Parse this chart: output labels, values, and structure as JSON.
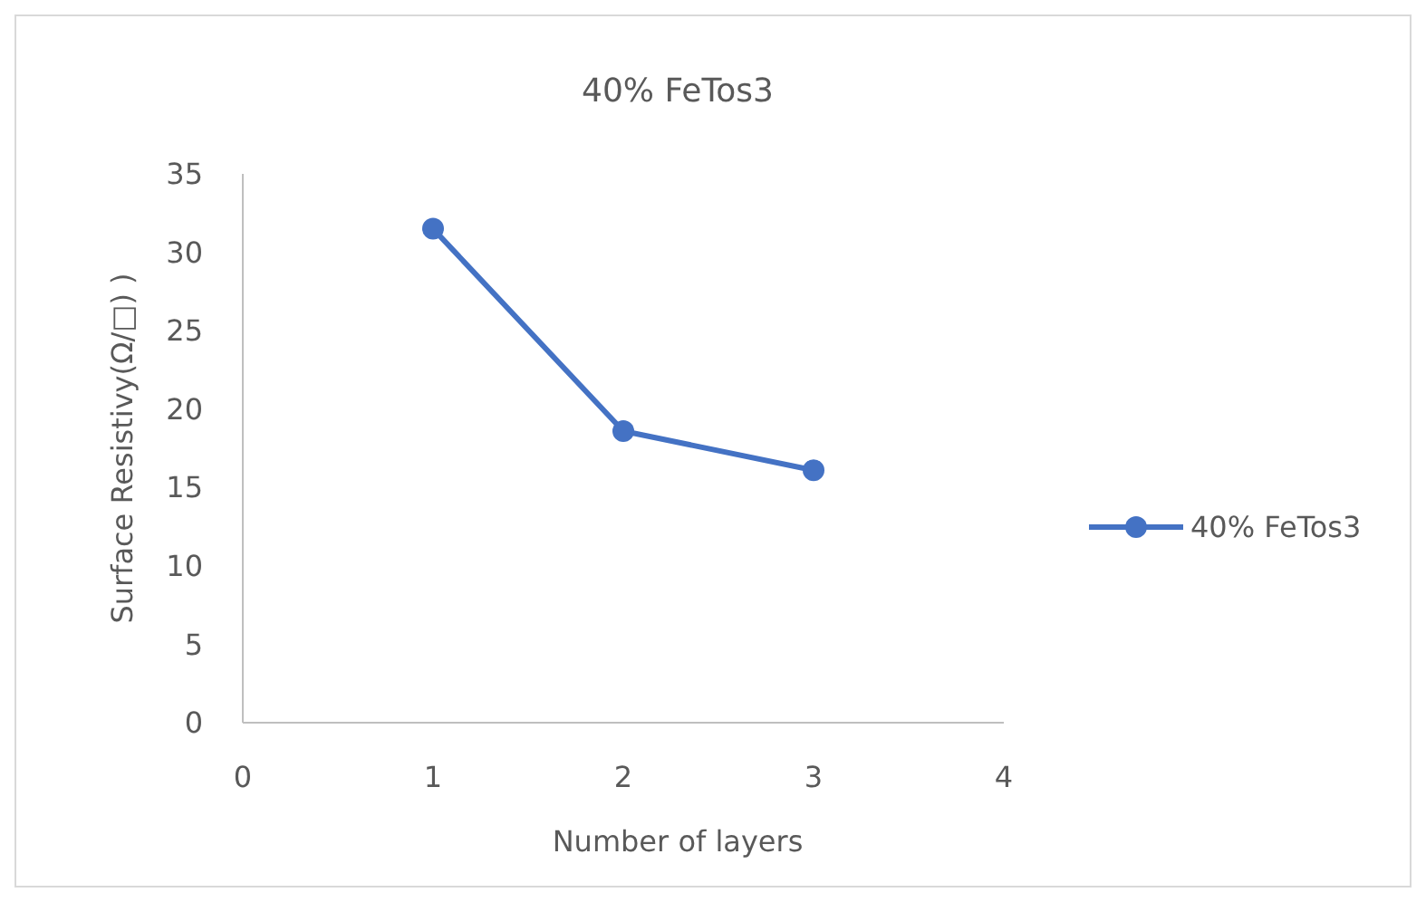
{
  "chart_data": {
    "type": "line",
    "title": "40% FeTos3",
    "xlabel": "Number of layers",
    "ylabel": "Surface Resistivy(Ω/□) )",
    "x": [
      1,
      2,
      3
    ],
    "series": [
      {
        "name": "40% FeTos3",
        "color": "#4472c4",
        "values": [
          31.5,
          18.6,
          16.1
        ]
      }
    ],
    "xlim": [
      0,
      4
    ],
    "xticks": [
      0,
      1,
      2,
      3,
      4
    ],
    "ylim": [
      0,
      35
    ],
    "yticks": [
      0,
      5,
      10,
      15,
      20,
      25,
      30,
      35
    ],
    "grid": false,
    "legend": "right",
    "marker": "circle",
    "line_style": "solid"
  }
}
